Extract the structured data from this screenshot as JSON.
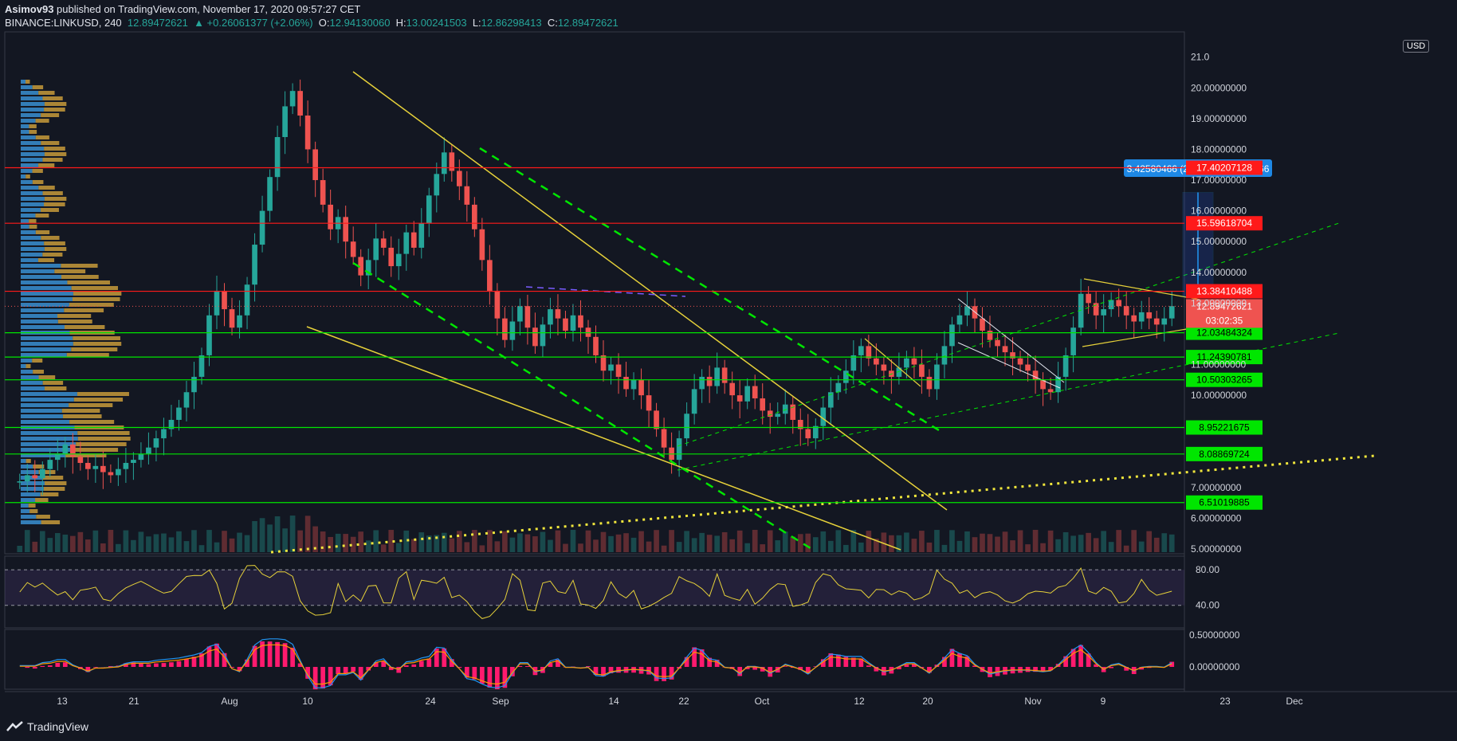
{
  "header": {
    "author": "Asimov93",
    "published_text": "published on TradingView.com, November 17, 2020 09:57:27 CET",
    "symbol": "BINANCE:LINKUSD, 240",
    "last": "12.89472621",
    "change": "▲ +0.26061377 (+2.06%)",
    "o_label": "O:",
    "o_val": "12.94130060",
    "h_label": "H:",
    "h_val": "13.00241503",
    "l_label": "L:",
    "l_val": "12.86298413",
    "c_label": "C:",
    "c_val": "12.89472621"
  },
  "currency_badge": "USD",
  "brand": "TradingView",
  "colors": {
    "bg": "#131722",
    "up": "#26a69a",
    "down": "#ef5350",
    "support": "#00e600",
    "resistance": "#ff1a1a",
    "trend": "#e6d13a",
    "volprofile_buy": "#3a8fd1",
    "volprofile_sell": "#c79a3a",
    "rsi": "#e6d13a",
    "macd": "#2196f3",
    "signal": "#ff9800",
    "hist": "#ff1a6e"
  },
  "chart_data": {
    "type": "candlestick",
    "ylim": [
      5.0,
      21.2
    ],
    "price_ticks": [
      "21.0",
      "20.00000000",
      "19.00000000",
      "18.00000000",
      "17.00000000",
      "16.00000000",
      "15.00000000",
      "14.00000000",
      "13.00000000",
      "11.00000000",
      "10.00000000",
      "7.00000000",
      "6.00000000",
      "5.00000000"
    ],
    "tick_values": [
      21,
      20,
      19,
      18,
      17,
      16,
      15,
      14,
      13,
      11,
      10,
      7,
      6,
      5
    ],
    "x_labels": [
      "13",
      "21",
      "Aug",
      "10",
      "24",
      "Sep",
      "14",
      "22",
      "Oct",
      "12",
      "20",
      "Nov",
      "9",
      "23",
      "Dec"
    ],
    "levels": [
      {
        "value": 17.40207128,
        "label": "17.40207128",
        "kind": "resistance"
      },
      {
        "value": 15.59618704,
        "label": "15.59618704",
        "kind": "resistance"
      },
      {
        "value": 13.38410488,
        "label": "13.38410488",
        "kind": "resistance"
      },
      {
        "value": 12.03484324,
        "label": "12.03484324",
        "kind": "support"
      },
      {
        "value": 11.24390781,
        "label": "11.24390781",
        "kind": "support"
      },
      {
        "value": 10.50303265,
        "label": "10.50303265",
        "kind": "support"
      },
      {
        "value": 8.95221675,
        "label": "8.95221675",
        "kind": "support"
      },
      {
        "value": 8.08869724,
        "label": "8.08869724",
        "kind": "support"
      },
      {
        "value": 6.51019885,
        "label": "6.51019885",
        "kind": "support"
      }
    ],
    "last_price": {
      "value": 12.89472621,
      "label": "12.89472621",
      "countdown": "03:02:35"
    },
    "measure": {
      "label": "3.42580466 (25.98%) 342580466",
      "from": 13.2,
      "to": 16.6
    },
    "candles_close": [
      7.2,
      7.4,
      7.3,
      7.6,
      7.9,
      8.1,
      8.4,
      8.0,
      7.8,
      7.6,
      7.7,
      7.5,
      7.4,
      7.6,
      7.8,
      7.9,
      8.1,
      8.3,
      8.6,
      8.9,
      9.2,
      9.6,
      10.1,
      10.6,
      11.3,
      12.6,
      13.4,
      12.8,
      12.2,
      12.6,
      13.6,
      14.9,
      16.0,
      17.1,
      18.4,
      19.4,
      19.9,
      19.1,
      18.0,
      17.0,
      16.2,
      15.4,
      15.8,
      15.0,
      14.5,
      13.9,
      14.4,
      15.1,
      14.8,
      14.2,
      14.6,
      15.3,
      14.8,
      15.6,
      16.5,
      17.2,
      17.9,
      17.3,
      16.8,
      16.2,
      15.4,
      14.4,
      13.4,
      12.5,
      11.8,
      12.4,
      12.9,
      12.2,
      11.6,
      12.3,
      12.8,
      12.5,
      12.1,
      12.6,
      12.2,
      11.9,
      11.3,
      10.8,
      11.0,
      10.6,
      10.2,
      10.5,
      10.0,
      9.5,
      8.9,
      8.3,
      7.9,
      8.6,
      9.4,
      10.2,
      10.6,
      10.3,
      10.9,
      10.4,
      10.0,
      9.8,
      10.3,
      9.9,
      9.5,
      9.3,
      9.4,
      9.7,
      9.2,
      8.9,
      8.6,
      9.0,
      9.6,
      10.1,
      10.4,
      10.8,
      11.3,
      11.6,
      11.2,
      11.0,
      10.8,
      10.6,
      10.9,
      11.2,
      11.0,
      10.6,
      10.2,
      11.0,
      11.6,
      12.3,
      12.6,
      12.9,
      12.5,
      12.1,
      11.8,
      11.6,
      11.4,
      11.2,
      11.0,
      10.8,
      10.5,
      10.2,
      10.1,
      10.6,
      11.3,
      12.2,
      13.3,
      13.0,
      12.6,
      12.8,
      13.1,
      12.9,
      12.6,
      12.4,
      12.7,
      12.5,
      12.3,
      12.5,
      12.9
    ],
    "rsi_levels": [
      {
        "value": 80,
        "label": "80.00"
      },
      {
        "value": 40,
        "label": "40.00"
      }
    ],
    "macd_levels": [
      {
        "value": 0.5,
        "label": "0.50000000"
      },
      {
        "value": 0.0,
        "label": "0.00000000"
      }
    ]
  }
}
